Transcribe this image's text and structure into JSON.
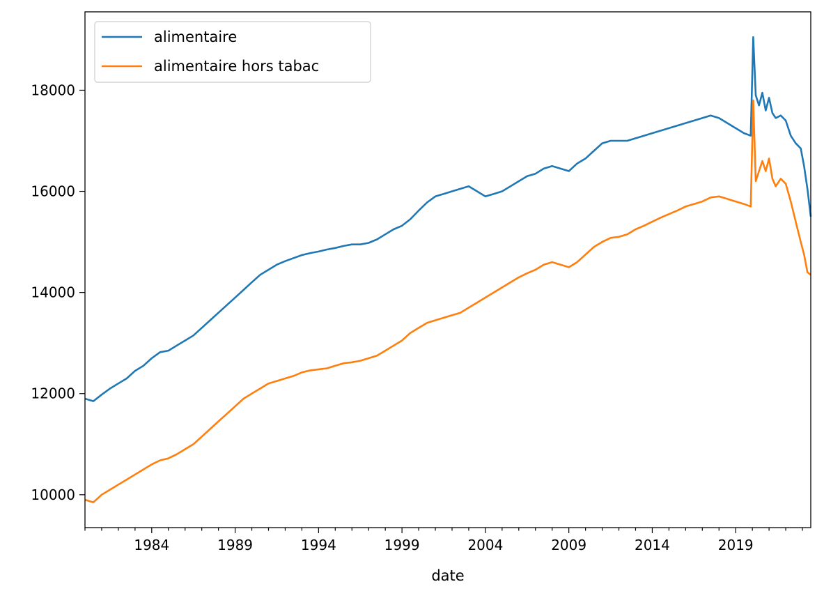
{
  "chart_data": {
    "type": "line",
    "title": "",
    "xlabel": "date",
    "ylabel": "",
    "x_ticks": [
      "1984",
      "1989",
      "1994",
      "1999",
      "2004",
      "2009",
      "2014",
      "2019"
    ],
    "y_ticks": [
      10000,
      12000,
      14000,
      16000,
      18000
    ],
    "xlim": [
      1980.0,
      2023.5
    ],
    "ylim": [
      9350,
      19550
    ],
    "grid": false,
    "legend_position": "top-left",
    "colors": {
      "alimentaire": "#1f77b4",
      "alimentaire hors tabac": "#ff7f0e"
    },
    "series": [
      {
        "name": "alimentaire",
        "x": [
          1980.0,
          1980.5,
          1981.0,
          1981.5,
          1982.0,
          1982.5,
          1983.0,
          1983.5,
          1984.0,
          1984.5,
          1985.0,
          1985.5,
          1986.0,
          1986.5,
          1987.0,
          1987.5,
          1988.0,
          1988.5,
          1989.0,
          1989.5,
          1990.0,
          1990.5,
          1991.0,
          1991.5,
          1992.0,
          1992.5,
          1993.0,
          1993.5,
          1994.0,
          1994.5,
          1995.0,
          1995.5,
          1996.0,
          1996.5,
          1997.0,
          1997.5,
          1998.0,
          1998.5,
          1999.0,
          1999.5,
          2000.0,
          2000.5,
          2001.0,
          2001.5,
          2002.0,
          2002.5,
          2003.0,
          2003.5,
          2004.0,
          2004.5,
          2005.0,
          2005.5,
          2006.0,
          2006.5,
          2007.0,
          2007.5,
          2008.0,
          2008.5,
          2009.0,
          2009.5,
          2010.0,
          2010.5,
          2011.0,
          2011.5,
          2012.0,
          2012.5,
          2013.0,
          2013.5,
          2014.0,
          2014.5,
          2015.0,
          2015.5,
          2016.0,
          2016.5,
          2017.0,
          2017.5,
          2018.0,
          2018.5,
          2019.0,
          2019.5,
          2019.9,
          2020.05,
          2020.2,
          2020.4,
          2020.6,
          2020.8,
          2021.0,
          2021.2,
          2021.4,
          2021.7,
          2022.0,
          2022.3,
          2022.6,
          2022.9,
          2023.1,
          2023.3,
          2023.5
        ],
        "values": [
          11900,
          11850,
          11980,
          12100,
          12200,
          12300,
          12450,
          12550,
          12700,
          12820,
          12850,
          12950,
          13050,
          13150,
          13300,
          13450,
          13600,
          13750,
          13900,
          14050,
          14200,
          14350,
          14450,
          14550,
          14620,
          14680,
          14740,
          14780,
          14810,
          14850,
          14880,
          14920,
          14950,
          14950,
          14980,
          15050,
          15150,
          15250,
          15320,
          15450,
          15620,
          15780,
          15900,
          15950,
          16000,
          16050,
          16100,
          16000,
          15900,
          15950,
          16000,
          16100,
          16200,
          16300,
          16350,
          16450,
          16500,
          16450,
          16400,
          16550,
          16650,
          16800,
          16950,
          17000,
          17000,
          17000,
          17050,
          17100,
          17150,
          17200,
          17250,
          17300,
          17350,
          17400,
          17450,
          17500,
          17450,
          17350,
          17250,
          17150,
          17100,
          19050,
          17900,
          17700,
          17950,
          17600,
          17850,
          17550,
          17450,
          17500,
          17400,
          17100,
          16950,
          16850,
          16500,
          16050,
          15500
        ]
      },
      {
        "name": "alimentaire hors tabac",
        "x": [
          1980.0,
          1980.5,
          1981.0,
          1981.5,
          1982.0,
          1982.5,
          1983.0,
          1983.5,
          1984.0,
          1984.5,
          1985.0,
          1985.5,
          1986.0,
          1986.5,
          1987.0,
          1987.5,
          1988.0,
          1988.5,
          1989.0,
          1989.5,
          1990.0,
          1990.5,
          1991.0,
          1991.5,
          1992.0,
          1992.5,
          1993.0,
          1993.5,
          1994.0,
          1994.5,
          1995.0,
          1995.5,
          1996.0,
          1996.5,
          1997.0,
          1997.5,
          1998.0,
          1998.5,
          1999.0,
          1999.5,
          2000.0,
          2000.5,
          2001.0,
          2001.5,
          2002.0,
          2002.5,
          2003.0,
          2003.5,
          2004.0,
          2004.5,
          2005.0,
          2005.5,
          2006.0,
          2006.5,
          2007.0,
          2007.5,
          2008.0,
          2008.5,
          2009.0,
          2009.5,
          2010.0,
          2010.5,
          2011.0,
          2011.5,
          2012.0,
          2012.5,
          2013.0,
          2013.5,
          2014.0,
          2014.5,
          2015.0,
          2015.5,
          2016.0,
          2016.5,
          2017.0,
          2017.5,
          2018.0,
          2018.5,
          2019.0,
          2019.5,
          2019.9,
          2020.05,
          2020.2,
          2020.4,
          2020.6,
          2020.8,
          2021.0,
          2021.2,
          2021.4,
          2021.7,
          2022.0,
          2022.3,
          2022.6,
          2022.9,
          2023.1,
          2023.3,
          2023.5
        ],
        "values": [
          9900,
          9850,
          10000,
          10100,
          10200,
          10300,
          10400,
          10500,
          10600,
          10680,
          10720,
          10800,
          10900,
          11000,
          11150,
          11300,
          11450,
          11600,
          11750,
          11900,
          12000,
          12100,
          12200,
          12250,
          12300,
          12350,
          12420,
          12460,
          12480,
          12500,
          12550,
          12600,
          12620,
          12650,
          12700,
          12750,
          12850,
          12950,
          13050,
          13200,
          13300,
          13400,
          13450,
          13500,
          13550,
          13600,
          13700,
          13800,
          13900,
          14000,
          14100,
          14200,
          14300,
          14380,
          14450,
          14550,
          14600,
          14550,
          14500,
          14600,
          14750,
          14900,
          15000,
          15080,
          15100,
          15150,
          15250,
          15320,
          15400,
          15480,
          15550,
          15620,
          15700,
          15750,
          15800,
          15880,
          15900,
          15850,
          15800,
          15750,
          15700,
          17800,
          16200,
          16400,
          16600,
          16400,
          16650,
          16250,
          16100,
          16250,
          16150,
          15800,
          15400,
          15000,
          14750,
          14400,
          14350
        ]
      }
    ]
  }
}
